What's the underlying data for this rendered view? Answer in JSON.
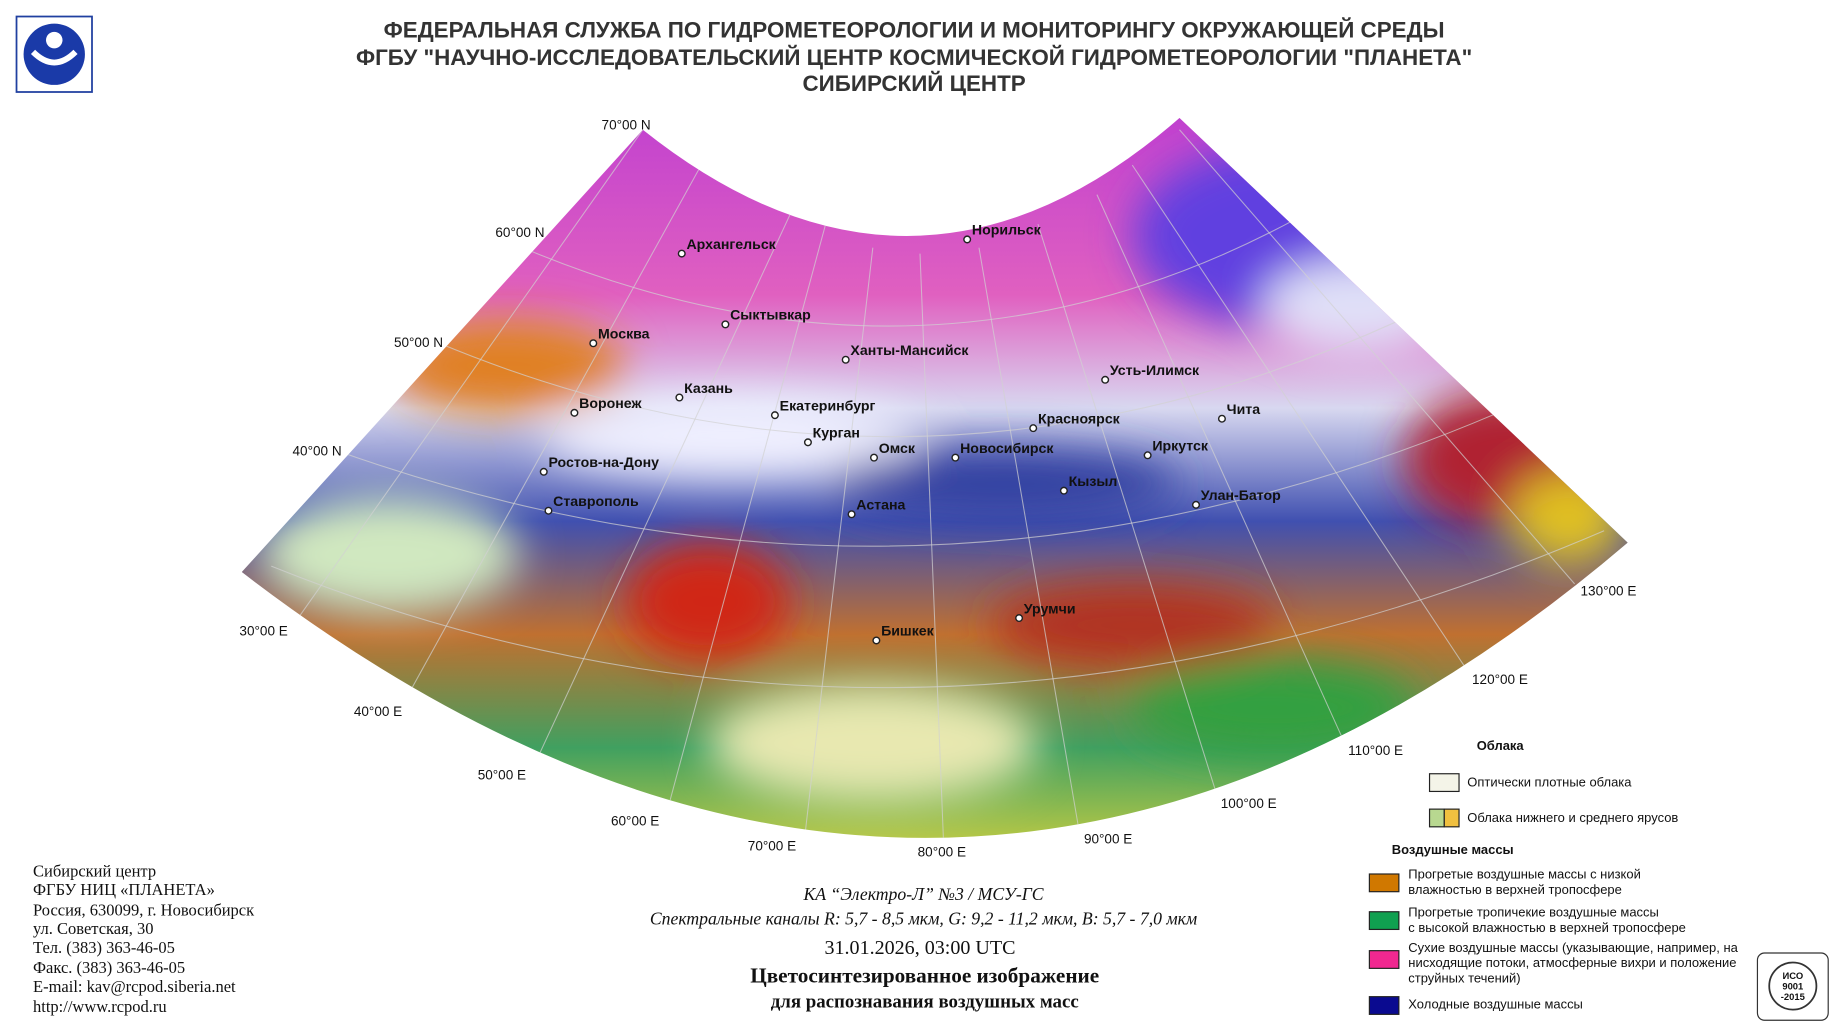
{
  "header": {
    "lines": [
      "ФЕДЕРАЛЬНАЯ СЛУЖБА ПО ГИДРОМЕТЕОРОЛОГИИ И МОНИТОРИНГУ ОКРУЖАЮЩЕЙ СРЕДЫ",
      "ФГБУ \"НАУЧНО-ИССЛЕДОВАТЕЛЬСКИЙ ЦЕНТР КОСМИЧЕСКОЙ ГИДРОМЕТЕОРОЛОГИИ \"ПЛАНЕТА\"",
      "СИБИРСКИЙ ЦЕНТР"
    ]
  },
  "map": {
    "cities": [
      "Архангельск",
      "Норильск",
      "Сыктывкар",
      "Москва",
      "Ханты-Мансийск",
      "Казань",
      "Воронеж",
      "Екатеринбург",
      "Усть-Илимск",
      "Чита",
      "Красноярск",
      "Курган",
      "Омск",
      "Новосибирск",
      "Иркутск",
      "Ростов-на-Дону",
      "Кызыл",
      "Улан-Батор",
      "Ставрополь",
      "Астана",
      "Урумчи",
      "Бишкек"
    ],
    "graticule": [
      "70°00 N",
      "60°00 N",
      "50°00 N",
      "40°00 N",
      "30°00 E",
      "40°00 E",
      "50°00 E",
      "60°00 E",
      "70°00 E",
      "80°00 E",
      "90°00 E",
      "100°00 E",
      "110°00 E",
      "120°00 E",
      "130°00 E"
    ]
  },
  "footer": {
    "lines": [
      "Сибирский центр",
      "ФГБУ НИЦ «ПЛАНЕТА»",
      "Россия, 630099, г. Новосибирск",
      "ул. Советская, 30",
      "Тел. (383) 363-46-05",
      "Факс. (383) 363-46-05",
      "E-mail: kav@rcpod.siberia.net",
      "http://www.rcpod.ru"
    ]
  },
  "caption": {
    "satellite": "КА “Электро-Л” №3 / МСУ-ГС",
    "channels": "Спектральные каналы R: 5,7 - 8,5 мкм, G: 9,2 - 11,2 мкм, B: 5,7 - 7,0 мкм",
    "datetime": "31.01.2026, 03:00 UTC",
    "title": [
      "Цветосинтезированное изображение",
      "для распознавания воздушных масс"
    ]
  },
  "legend": {
    "clouds_title": "Облака",
    "clouds": [
      "Оптически плотные облака",
      "Облака нижнего и среднего ярусов"
    ],
    "air_title": "Воздушные массы",
    "air": [
      [
        "Прогретые воздушные массы с низкой",
        "влажностью в верхней тропосфере"
      ],
      [
        "Прогретые тропичекие воздушные массы",
        "с высокой влажностью в верхней тропосфере"
      ],
      [
        "Сухие воздушные массы (указывающие, например, на",
        "нисходящие потоки, атмосферные вихри и положение",
        "струйных течений)"
      ],
      [
        "Холодные воздушные массы"
      ]
    ]
  },
  "iso": [
    "ИСО",
    "9001",
    "-2015"
  ]
}
